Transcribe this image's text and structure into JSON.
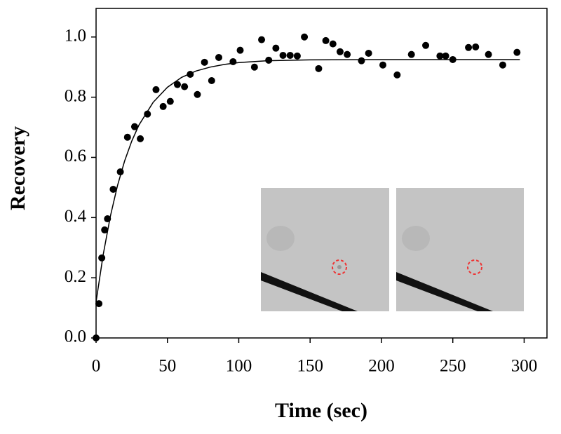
{
  "chart_data": {
    "type": "scatter",
    "x_label": "Time (sec)",
    "y_label": "Recovery",
    "xlim": [
      0,
      316
    ],
    "ylim": [
      0,
      1.095
    ],
    "xticks": [
      0,
      50,
      100,
      150,
      200,
      250,
      300
    ],
    "yticks": [
      {
        "value": 0,
        "label": "0.0"
      },
      0.2,
      0.4,
      0.6,
      0.8,
      {
        "value": 1,
        "label": "1.0"
      }
    ],
    "points": {
      "color": "#000000",
      "x": [
        0,
        2,
        4,
        6,
        8,
        12,
        17,
        22,
        27,
        31,
        36,
        42,
        47,
        52,
        57,
        62,
        66,
        71,
        76,
        81,
        86,
        96,
        101,
        111,
        116,
        121,
        126,
        131,
        136,
        141,
        146,
        156,
        161,
        166,
        171,
        176,
        186,
        191,
        201,
        211,
        221,
        231,
        241,
        245,
        250,
        261,
        266,
        275,
        285,
        295
      ],
      "values": [
        0,
        0.114,
        0.266,
        0.359,
        0.396,
        0.494,
        0.552,
        0.667,
        0.702,
        0.662,
        0.744,
        0.825,
        0.769,
        0.786,
        0.842,
        0.835,
        0.876,
        0.809,
        0.916,
        0.855,
        0.932,
        0.918,
        0.956,
        0.9,
        0.991,
        0.923,
        0.963,
        0.939,
        0.939,
        0.937,
        1.0,
        0.895,
        0.988,
        0.977,
        0.951,
        0.942,
        0.921,
        0.946,
        0.907,
        0.874,
        0.942,
        0.972,
        0.937,
        0.937,
        0.925,
        0.965,
        0.967,
        0.942,
        0.907,
        0.949
      ]
    },
    "fit": {
      "color": "#000000",
      "x": [
        0,
        5,
        10,
        15,
        20,
        25,
        30,
        40,
        50,
        60,
        70,
        80,
        90,
        100,
        120,
        150,
        200,
        250,
        297
      ],
      "values": [
        0.12,
        0.277,
        0.404,
        0.506,
        0.588,
        0.654,
        0.707,
        0.783,
        0.833,
        0.866,
        0.887,
        0.9,
        0.909,
        0.915,
        0.921,
        0.924,
        0.925,
        0.925,
        0.925
      ]
    }
  }
}
